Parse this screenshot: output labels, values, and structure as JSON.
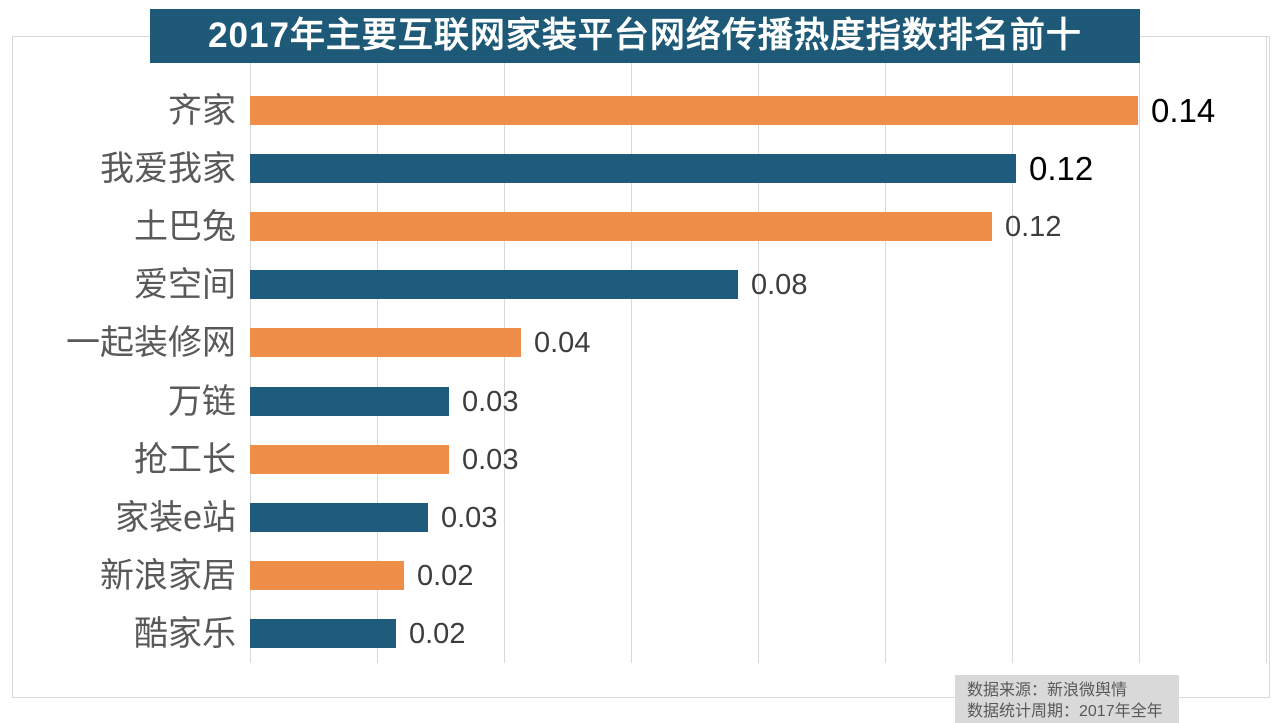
{
  "title": {
    "text": "2017年主要互联网家装平台网络传播热度指数排名前十",
    "bg": "#1e5a77",
    "color": "#ffffff"
  },
  "chart_data": {
    "type": "bar",
    "orientation": "horizontal",
    "title": "2017年主要互联网家装平台网络传播热度指数排名前十",
    "categories": [
      "齐家",
      "我爱我家",
      "土巴兔",
      "爱空间",
      "一起装修网",
      "万链",
      "抢工长",
      "家装e站",
      "新浪家居",
      "酷家乐"
    ],
    "values": [
      0.14,
      0.12,
      0.12,
      0.08,
      0.04,
      0.03,
      0.03,
      0.03,
      0.02,
      0.02
    ],
    "value_labels": [
      "0.14",
      "0.12",
      "0.12",
      "0.08",
      "0.04",
      "0.03",
      "0.03",
      "0.03",
      "0.02",
      "0.02"
    ],
    "plotted_values": [
      0.1398,
      0.1206,
      0.1168,
      0.0769,
      0.0426,
      0.0313,
      0.0313,
      0.0281,
      0.0242,
      0.023
    ],
    "xlabel": "",
    "ylabel": "",
    "xlim": [
      0,
      0.16
    ],
    "gridline_step": 0.02,
    "grid": "vertical-only",
    "legend": "none",
    "bar_color_pattern": [
      "#ef8e49",
      "#1f5b7c"
    ],
    "bar_color_note": "bars alternate orange then blue starting at the top row",
    "value_label_emphasis_rows": [
      0,
      1
    ]
  },
  "footer": {
    "source": "数据来源：新浪微舆情",
    "period": "数据统计周期：2017年全年"
  },
  "colors": {
    "orange": "#ef8e49",
    "blue": "#1f5b7c",
    "grid": "#d9d9d9",
    "border": "#d9d9d9",
    "category_label": "#595959",
    "value_label": "#3d3d3d",
    "value_label_emphasis": "#000000",
    "footer_bg": "#d9d9d9",
    "footer_text": "#595959",
    "background": "#ffffff"
  }
}
